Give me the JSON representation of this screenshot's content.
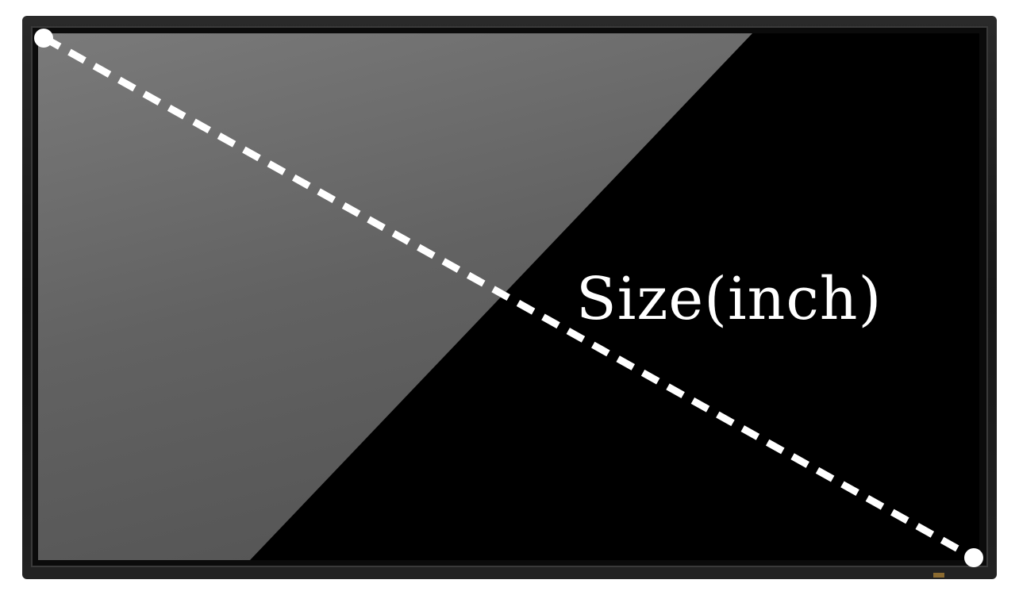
{
  "diagram": {
    "label": "Size(inch)",
    "colors": {
      "bezel": "#1a1a1a",
      "screen_light": "#6e6e6e",
      "screen_dark": "#000000",
      "diagonal_line": "#ffffff",
      "endpoint": "#ffffff",
      "label": "#ffffff"
    }
  }
}
